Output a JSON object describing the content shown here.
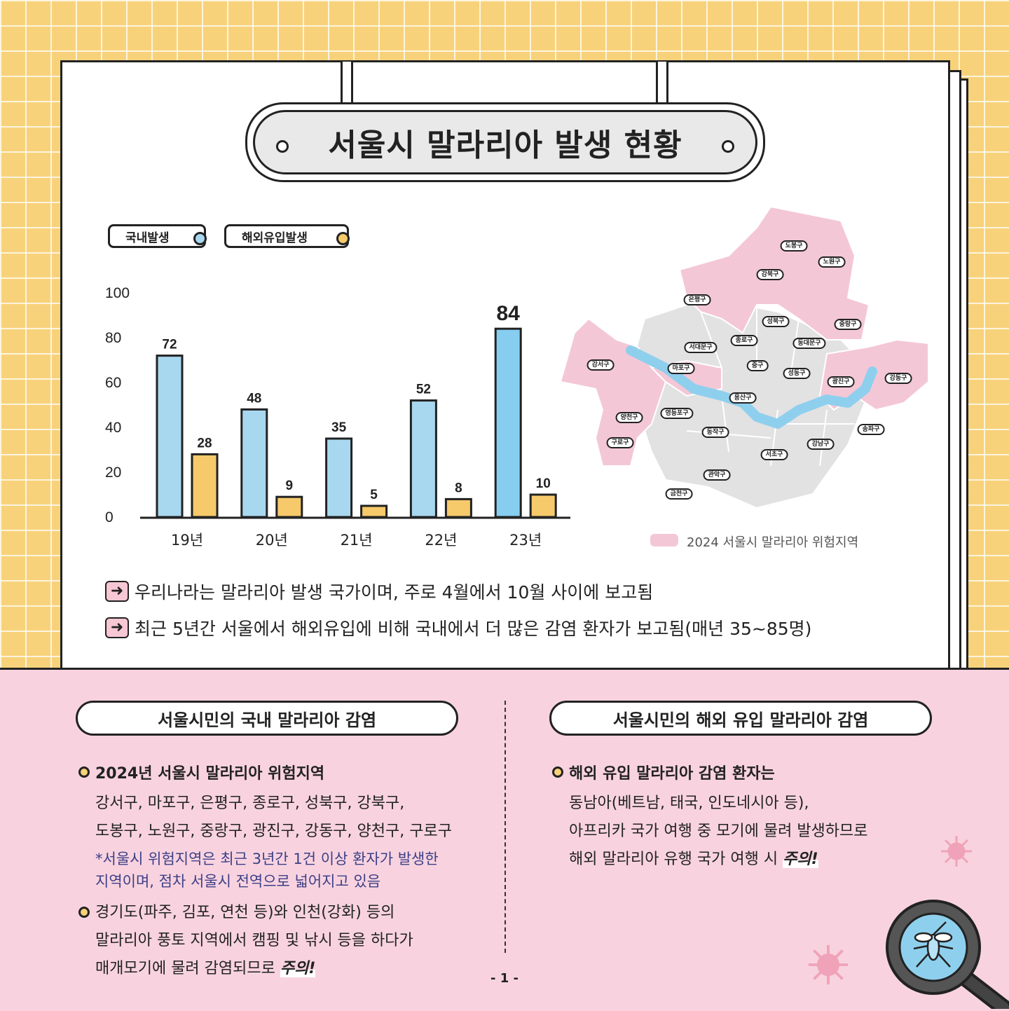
{
  "title": "서울시 말라리아 발생 현황",
  "legend": {
    "domestic": "국내발생",
    "imported": "해외유입발생"
  },
  "colors": {
    "domestic": "#a8d8f0",
    "domestic_highlight": "#86cdef",
    "imported": "#f6c96b",
    "risk_area": "#f4c7d6",
    "non_risk_area": "#e2e2e2",
    "river": "#8fcfee"
  },
  "chart_data": {
    "type": "bar",
    "categories": [
      "19년",
      "20년",
      "21년",
      "22년",
      "23년"
    ],
    "series": [
      {
        "name": "국내발생",
        "values": [
          72,
          48,
          35,
          52,
          84
        ]
      },
      {
        "name": "해외유입발생",
        "values": [
          28,
          9,
          5,
          8,
          10
        ]
      }
    ],
    "y_ticks": [
      "0",
      "20",
      "40",
      "60",
      "80",
      "100"
    ],
    "ylim": [
      0,
      100
    ],
    "grid": false,
    "legend_position": "top-left"
  },
  "map": {
    "legend_label": "2024 서울시 말라리아 위험지역",
    "districts": [
      {
        "name": "도봉구",
        "risk": true
      },
      {
        "name": "노원구",
        "risk": true
      },
      {
        "name": "강북구",
        "risk": true
      },
      {
        "name": "은평구",
        "risk": true
      },
      {
        "name": "성북구",
        "risk": true
      },
      {
        "name": "중랑구",
        "risk": true
      },
      {
        "name": "종로구",
        "risk": true
      },
      {
        "name": "서대문구",
        "risk": false
      },
      {
        "name": "동대문구",
        "risk": false
      },
      {
        "name": "강서구",
        "risk": true
      },
      {
        "name": "마포구",
        "risk": true
      },
      {
        "name": "중구",
        "risk": false
      },
      {
        "name": "성동구",
        "risk": false
      },
      {
        "name": "광진구",
        "risk": true
      },
      {
        "name": "강동구",
        "risk": true
      },
      {
        "name": "용산구",
        "risk": false
      },
      {
        "name": "양천구",
        "risk": true
      },
      {
        "name": "영등포구",
        "risk": false
      },
      {
        "name": "동작구",
        "risk": false
      },
      {
        "name": "송파구",
        "risk": false
      },
      {
        "name": "강남구",
        "risk": false
      },
      {
        "name": "구로구",
        "risk": true
      },
      {
        "name": "서초구",
        "risk": false
      },
      {
        "name": "관악구",
        "risk": false
      },
      {
        "name": "금천구",
        "risk": false
      }
    ]
  },
  "notes": [
    "우리나라는 말라리아 발생 국가이며, 주로 4월에서 10월 사이에 보고됨",
    "최근 5년간 서울에서 해외유입에 비해 국내에서 더 많은 감염 환자가 보고됨(매년 35~85명)"
  ],
  "domestic_section": {
    "title": "서울시민의 국내 말라리아 감염",
    "bullet1_heading": "2024년 서울시 말라리아 위험지역",
    "bullet1_line1": "강서구, 마포구, 은평구, 종로구, 성북구, 강북구,",
    "bullet1_line2": "도봉구, 노원구, 중랑구, 광진구, 강동구, 양천구, 구로구",
    "bullet1_note1": "*서울시 위험지역은 최근 3년간 1건 이상 환자가 발생한",
    "bullet1_note2": "지역이며, 점차 서울시 전역으로 넓어지고 있음",
    "bullet2_line1": "경기도(파주, 김포, 연천 등)와 인천(강화) 등의",
    "bullet2_line2": "말라리아 풍토 지역에서 캠핑 및 낚시 등을 하다가",
    "bullet2_line3": "매개모기에 물려 감염되므로",
    "bullet2_emphasis": "주의!"
  },
  "imported_section": {
    "title": "서울시민의 해외 유입 말라리아 감염",
    "heading": "해외 유입 말라리아 감염 환자는",
    "line1": "동남아(베트남, 태국, 인도네시아 등),",
    "line2": "아프리카 국가 여행 중 모기에 물려 발생하므로",
    "line3": "해외 말라리아 유행 국가 여행 시",
    "emphasis": "주의!"
  },
  "page_number": "- 1 -",
  "icons": [
    "arrow-right-icon",
    "virus-icon",
    "magnifier-mosquito-icon"
  ]
}
